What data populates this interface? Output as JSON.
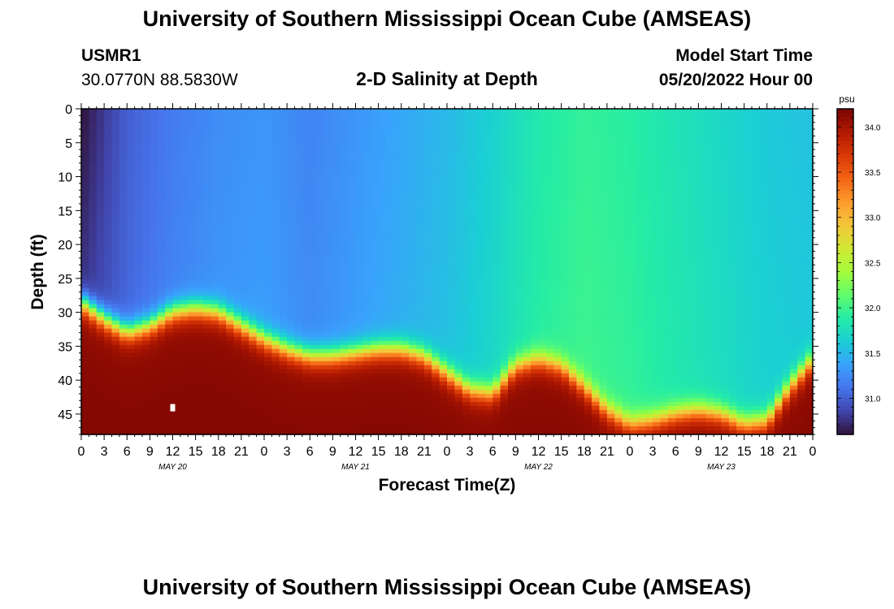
{
  "page": {
    "title_top": "University of Southern Mississippi Ocean Cube (AMSEAS)",
    "title_bottom": "University of Southern Mississippi Ocean Cube (AMSEAS)",
    "station_id": "USMR1",
    "station_coords": "30.0770N  88.5830W",
    "plot_title": "2-D Salinity at Depth",
    "start_label": "Model Start Time",
    "start_value": "05/20/2022 Hour 00"
  },
  "chart_data": {
    "type": "heatmap",
    "title": "2-D Salinity at Depth",
    "xlabel": "Forecast Time(Z)",
    "ylabel": "Depth (ft)",
    "xlim_hours": [
      0,
      96
    ],
    "ylim": [
      0,
      48
    ],
    "yticks": [
      0,
      5,
      10,
      15,
      20,
      25,
      30,
      35,
      40,
      45
    ],
    "xticks": [
      "0",
      "3",
      "6",
      "9",
      "12",
      "15",
      "18",
      "21",
      "0",
      "3",
      "6",
      "9",
      "12",
      "15",
      "18",
      "21",
      "0",
      "3",
      "6",
      "9",
      "12",
      "15",
      "18",
      "21",
      "0",
      "3",
      "6",
      "9",
      "12",
      "15",
      "18",
      "21",
      "0"
    ],
    "day_labels": [
      "MAY 20",
      "MAY 21",
      "MAY 22",
      "MAY 23"
    ],
    "colorbar": {
      "unit": "psu",
      "min": 30.6,
      "max": 34.2,
      "ticks": [
        "34.0",
        "33.5",
        "33.0",
        "32.5",
        "32.0",
        "31.5",
        "31.0"
      ],
      "colors": [
        "#30123b",
        "#4145ab",
        "#4675ed",
        "#39a2fc",
        "#1bcfd4",
        "#24eca6",
        "#61fc6c",
        "#a4fc3b",
        "#d1e834",
        "#f3c63a",
        "#fe9b2d",
        "#f36315",
        "#d93806",
        "#b11901",
        "#7a0403"
      ]
    },
    "halocline_depth_ft": {
      "hours": [
        0,
        3,
        6,
        9,
        12,
        15,
        18,
        21,
        24,
        27,
        30,
        33,
        36,
        39,
        42,
        45,
        48,
        51,
        54,
        57,
        60,
        63,
        66,
        69,
        72,
        75,
        78,
        81,
        84,
        87,
        90,
        93,
        96
      ],
      "depth": [
        28.5,
        31,
        33,
        32,
        30,
        29.5,
        30,
        32,
        34,
        35.5,
        36.5,
        36.5,
        36,
        35.5,
        35.5,
        36.5,
        39,
        41.5,
        42,
        38,
        37,
        38,
        41,
        44.5,
        46.5,
        46,
        45,
        44.5,
        45,
        46.5,
        46,
        41,
        37
      ]
    },
    "surface_salinity_psu": {
      "hours": [
        0,
        6,
        12,
        18,
        24,
        30,
        36,
        42,
        48,
        54,
        60,
        66,
        72,
        78,
        84,
        90,
        96
      ],
      "values": [
        30.7,
        31.0,
        31.15,
        31.25,
        31.3,
        31.2,
        31.3,
        31.4,
        31.5,
        31.65,
        31.85,
        31.95,
        31.9,
        31.8,
        31.7,
        31.6,
        31.55
      ]
    },
    "deep_salinity_psu": 34.1,
    "marker": {
      "hour": 12,
      "depth_ft": 44
    }
  }
}
